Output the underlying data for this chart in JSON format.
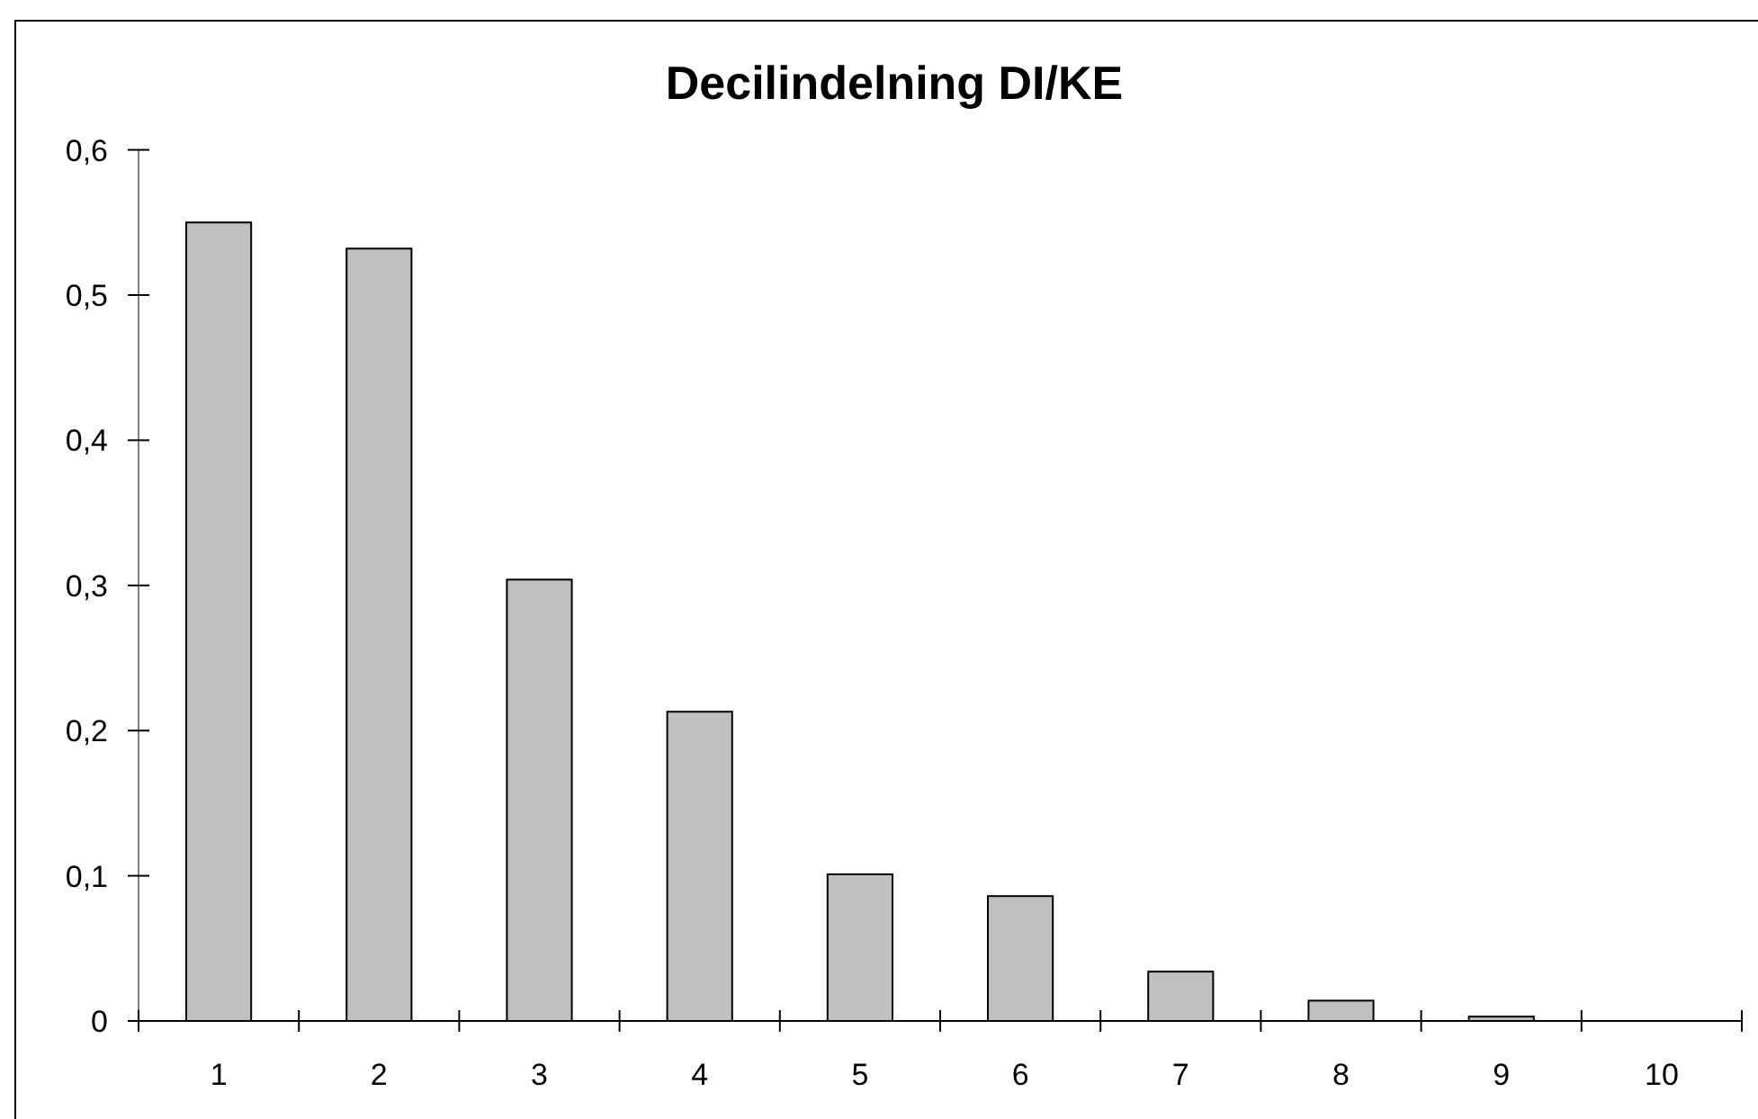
{
  "chart_data": {
    "type": "bar",
    "title": "Decilindelning DI/KE",
    "categories": [
      "1",
      "2",
      "3",
      "4",
      "5",
      "6",
      "7",
      "8",
      "9",
      "10"
    ],
    "values": [
      0.55,
      0.532,
      0.304,
      0.213,
      0.101,
      0.086,
      0.034,
      0.014,
      0.003,
      0
    ],
    "color": "#c0c0c0",
    "ylim": [
      0,
      0.6
    ],
    "yticks": [
      0,
      {
        "value": 0.1,
        "label": "0,1"
      },
      {
        "value": 0.2,
        "label": "0,2"
      },
      {
        "value": 0.3,
        "label": "0,3"
      },
      {
        "value": 0.4,
        "label": "0,4"
      },
      {
        "value": 0.5,
        "label": "0,5"
      },
      {
        "value": 0.6,
        "label": "0,6"
      }
    ]
  }
}
